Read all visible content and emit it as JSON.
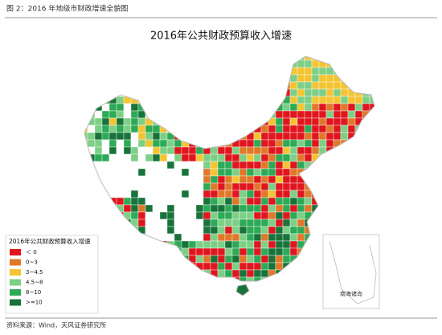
{
  "header": {
    "title": "图 2：2016 年地级市财政增速全貌图"
  },
  "map": {
    "title": "2016年公共财政预算收入增速",
    "inset_label": "南海诸岛"
  },
  "legend": {
    "title": "2016年公共财政预算收入增速",
    "items": [
      {
        "label": "＜ 0",
        "color": "#e0161e"
      },
      {
        "label": "0~3",
        "color": "#e0782a"
      },
      {
        "label": "3~4.5",
        "color": "#f4c433"
      },
      {
        "label": "4.5~8",
        "color": "#7dcf86"
      },
      {
        "label": "8~10",
        "color": "#2daa55"
      },
      {
        "label": ">=10",
        "color": "#18733a"
      }
    ]
  },
  "footer": {
    "source": "资料来源：Wind，天风证券研究所"
  }
}
